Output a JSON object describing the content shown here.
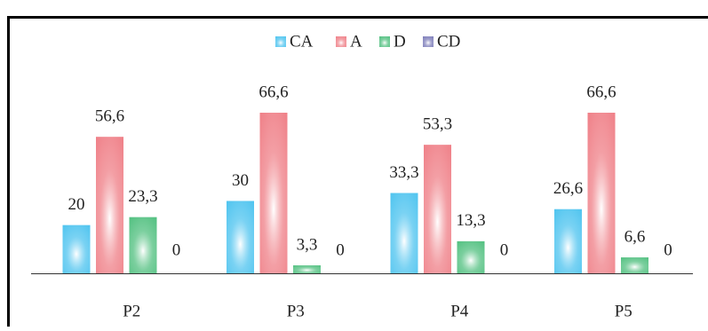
{
  "chart_data": {
    "type": "bar",
    "categories": [
      "P2",
      "P3",
      "P4",
      "P5"
    ],
    "series": [
      {
        "name": "CA",
        "color": "#4cc3ef",
        "values": [
          20,
          30,
          33.3,
          26.6
        ],
        "value_labels": [
          "20",
          "30",
          "33,3",
          "26,6"
        ]
      },
      {
        "name": "A",
        "color": "#ef7e86",
        "values": [
          56.6,
          66.6,
          53.3,
          66.6
        ],
        "value_labels": [
          "56,6",
          "66,6",
          "53,3",
          "66,6"
        ]
      },
      {
        "name": "D",
        "color": "#4fbf7e",
        "values": [
          23.3,
          3.3,
          13.3,
          6.6
        ],
        "value_labels": [
          "23,3",
          "3,3",
          "13,3",
          "6,6"
        ]
      },
      {
        "name": "CD",
        "color": "#7a7ab8",
        "values": [
          0,
          0,
          0,
          0
        ],
        "value_labels": [
          "0",
          "0",
          "0",
          "0"
        ]
      }
    ]
  }
}
